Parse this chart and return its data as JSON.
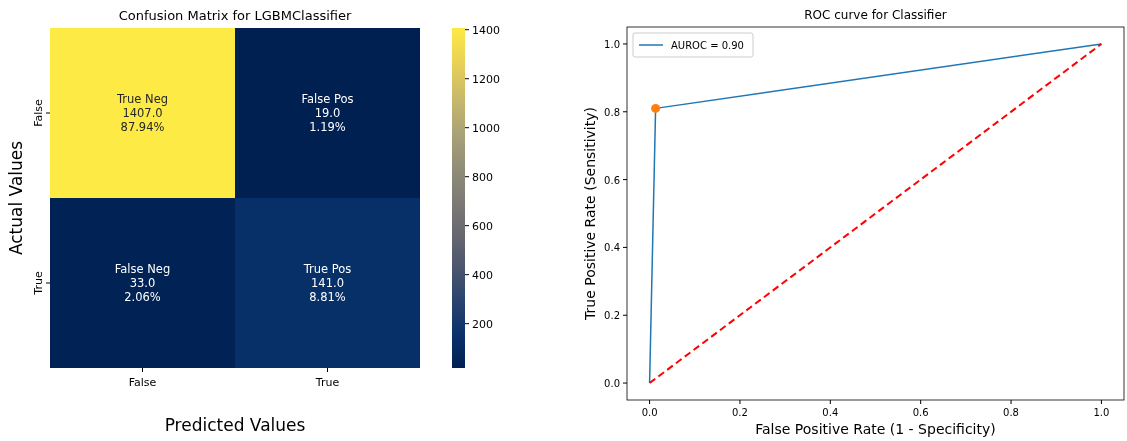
{
  "chart_data": [
    {
      "type": "heatmap",
      "title": "Confusion Matrix for LGBMClassifier",
      "xlabel": "Predicted Values",
      "ylabel": "Actual Values",
      "categories": [
        "False",
        "True"
      ],
      "y_categories": [
        "False",
        "True"
      ],
      "cells": [
        [
          1407,
          19
        ],
        [
          33,
          141
        ]
      ],
      "cell_labels": [
        [
          "True Neg\n1407.0\n87.94%",
          "False Pos\n19.0\n1.19%"
        ],
        [
          "False Neg\n33.0\n2.06%",
          "True Pos\n141.0\n8.81%"
        ]
      ],
      "clim": [
        19,
        1407
      ],
      "cticks": [
        200,
        400,
        600,
        800,
        1000,
        1200,
        1400
      ]
    },
    {
      "type": "line",
      "title": "ROC curve for Classifier",
      "xlabel": "False Positive Rate (1 - Specificity)",
      "ylabel": "True Positive Rate (Sensitivity)",
      "series": [
        {
          "name": "AUROC = 0.90",
          "color": "#1f77b4",
          "x": [
            0,
            0.0133,
            1
          ],
          "values": [
            0,
            0.81,
            1
          ],
          "marker": "none",
          "line_style": "solid"
        },
        {
          "type": "scatter",
          "color": "#ff7f0e",
          "x": [
            0.0133
          ],
          "values": [
            0.81
          ],
          "marker": "circle"
        },
        {
          "color": "#ff0000",
          "x": [
            0,
            1
          ],
          "values": [
            0,
            1
          ],
          "marker": "none",
          "line_style": "dashed"
        }
      ],
      "xlim": [
        -0.05,
        1.05
      ],
      "ylim": [
        -0.05,
        1.05
      ],
      "xticks": [
        {
          "value": 0,
          "label": "0.0"
        },
        {
          "value": 0.2,
          "label": "0.2"
        },
        {
          "value": 0.4,
          "label": "0.4"
        },
        {
          "value": 0.6,
          "label": "0.6"
        },
        {
          "value": 0.8,
          "label": "0.8"
        },
        {
          "value": 1,
          "label": "1.0"
        }
      ],
      "yticks": [
        {
          "value": 0,
          "label": "0.0"
        },
        {
          "value": 0.2,
          "label": "0.2"
        },
        {
          "value": 0.4,
          "label": "0.4"
        },
        {
          "value": 0.6,
          "label": "0.6"
        },
        {
          "value": 0.8,
          "label": "0.8"
        },
        {
          "value": 1,
          "label": "1.0"
        }
      ],
      "legend": "top left",
      "grid": false
    }
  ]
}
